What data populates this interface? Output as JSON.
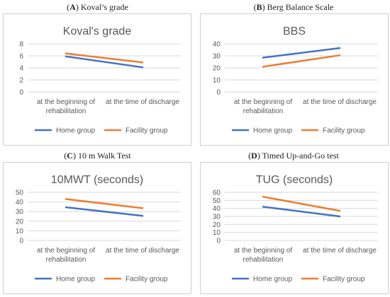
{
  "chart_data": [
    {
      "type": "line",
      "panel_letter": "A",
      "caption": "Koval’s grade",
      "title": "Koval's grade",
      "categories": [
        "at the beginning of rehabilitation",
        "at the time of discharge"
      ],
      "category_lines": [
        [
          "at the beginning of",
          "rehabilitation"
        ],
        [
          "at the time of discharge"
        ]
      ],
      "yticks": [
        0,
        2,
        4,
        6,
        8
      ],
      "ylim": [
        0,
        8
      ],
      "grid": true,
      "legend": "bottom",
      "series": [
        {
          "name": "Home group",
          "values": [
            5.9,
            4.1
          ],
          "color": "#4472c4"
        },
        {
          "name": "Facility group",
          "values": [
            6.4,
            4.9
          ],
          "color": "#ed7d31"
        }
      ]
    },
    {
      "type": "line",
      "panel_letter": "B",
      "caption": "Berg Balance Scale",
      "title": "BBS",
      "categories": [
        "at the beginning of rehabilitation",
        "at the time of discharge"
      ],
      "category_lines": [
        [
          "at the beginning of",
          "rehabilitation"
        ],
        [
          "at the time of discharge"
        ]
      ],
      "yticks": [
        0,
        10,
        20,
        30,
        40
      ],
      "ylim": [
        0,
        40
      ],
      "grid": true,
      "legend": "bottom",
      "series": [
        {
          "name": "Home group",
          "values": [
            28.5,
            36.5
          ],
          "color": "#4472c4"
        },
        {
          "name": "Facility group",
          "values": [
            21,
            30.5
          ],
          "color": "#ed7d31"
        }
      ]
    },
    {
      "type": "line",
      "panel_letter": "C",
      "caption": "10 m Walk Test",
      "title": "10MWT (seconds)",
      "categories": [
        "at the beginning of rehabilitation",
        "at the time of discharge"
      ],
      "category_lines": [
        [
          "at the beginning of",
          "rehabilitation"
        ],
        [
          "at the time of discharge"
        ]
      ],
      "yticks": [
        0,
        10,
        20,
        30,
        40,
        50
      ],
      "ylim": [
        0,
        50
      ],
      "grid": true,
      "legend": "bottom",
      "series": [
        {
          "name": "Home group",
          "values": [
            34.5,
            25.5
          ],
          "color": "#4472c4"
        },
        {
          "name": "Facility group",
          "values": [
            43,
            33.5
          ],
          "color": "#ed7d31"
        }
      ]
    },
    {
      "type": "line",
      "panel_letter": "D",
      "caption": "Timed Up-and-Go test",
      "title": "TUG (seconds)",
      "categories": [
        "at the beginning of rehabilitation",
        "at the time of discharge"
      ],
      "category_lines": [
        [
          "at the beginning of",
          "rehabilitation"
        ],
        [
          "at the time of discharge"
        ]
      ],
      "yticks": [
        0,
        10,
        20,
        30,
        40,
        50,
        60
      ],
      "ylim": [
        0,
        60
      ],
      "grid": true,
      "legend": "bottom",
      "series": [
        {
          "name": "Home group",
          "values": [
            42,
            30
          ],
          "color": "#4472c4"
        },
        {
          "name": "Facility group",
          "values": [
            54.5,
            37
          ],
          "color": "#ed7d31"
        }
      ]
    }
  ]
}
